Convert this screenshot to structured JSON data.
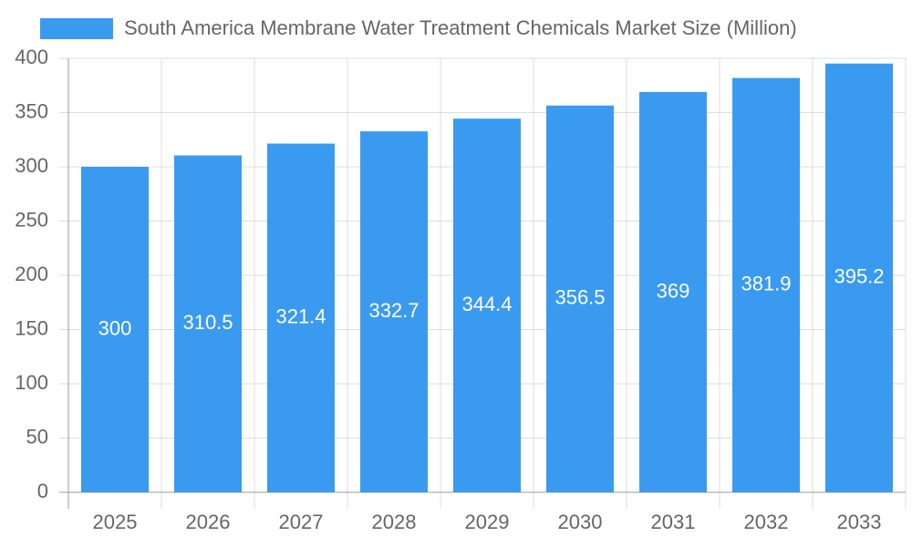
{
  "chart_data": {
    "type": "bar",
    "categories": [
      "2025",
      "2026",
      "2027",
      "2028",
      "2029",
      "2030",
      "2031",
      "2032",
      "2033"
    ],
    "series": [
      {
        "name": "South America Membrane Water Treatment Chemicals Market Size (Million)",
        "color": "#3a9af0",
        "values": [
          300,
          310.5,
          321.4,
          332.7,
          344.4,
          356.5,
          369,
          381.9,
          395.2
        ]
      }
    ],
    "ylim": [
      0,
      400
    ],
    "yticks": [
      0,
      50,
      100,
      150,
      200,
      250,
      300,
      350,
      400
    ],
    "grid": true,
    "legend": "top"
  }
}
